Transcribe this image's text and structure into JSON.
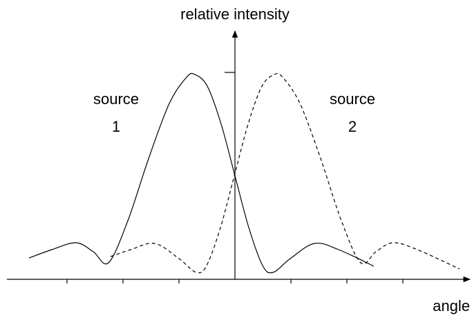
{
  "y_axis_label": "relative intensity",
  "x_axis_label": "angle",
  "labels": [
    {
      "line1": "source",
      "line2": "1"
    },
    {
      "line1": "source",
      "line2": "2"
    }
  ]
}
